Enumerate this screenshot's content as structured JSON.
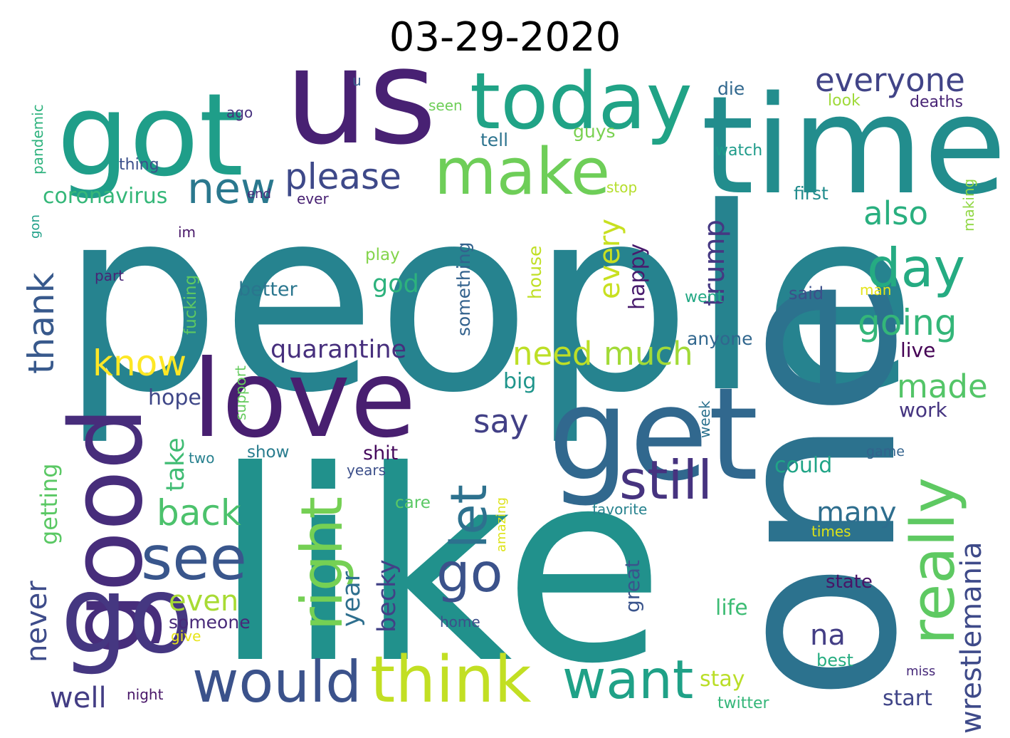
{
  "title": "03-29-2020",
  "words": [
    {
      "text": "people",
      "color": "#26838f"
    },
    {
      "text": "like",
      "color": "#21918c"
    },
    {
      "text": "one",
      "color": "#2c728e"
    },
    {
      "text": "time",
      "color": "#228d8d"
    },
    {
      "text": "us",
      "color": "#482173"
    },
    {
      "text": "got",
      "color": "#1f9e89"
    },
    {
      "text": "get",
      "color": "#31688e"
    },
    {
      "text": "love",
      "color": "#481f70"
    },
    {
      "text": "good",
      "color": "#472d7b"
    },
    {
      "text": "go",
      "color": "#453781"
    },
    {
      "text": "today",
      "color": "#20a386"
    },
    {
      "text": "make",
      "color": "#6ece58"
    },
    {
      "text": "really",
      "color": "#5ec962"
    },
    {
      "text": "think",
      "color": "#c2df23"
    },
    {
      "text": "would",
      "color": "#3b528b"
    },
    {
      "text": "want",
      "color": "#1fa187"
    },
    {
      "text": "see",
      "color": "#39568c"
    },
    {
      "text": "right",
      "color": "#75d054"
    },
    {
      "text": "still",
      "color": "#46337f"
    },
    {
      "text": "day",
      "color": "#25ab82"
    },
    {
      "text": "new",
      "color": "#2a788e"
    },
    {
      "text": "please",
      "color": "#3e4989"
    },
    {
      "text": "let",
      "color": "#2d718e"
    },
    {
      "text": "go",
      "color": "#3b528b"
    },
    {
      "text": "everyone",
      "color": "#414487"
    },
    {
      "text": "also",
      "color": "#29af7f"
    },
    {
      "text": "going",
      "color": "#34b679"
    },
    {
      "text": "thank",
      "color": "#38598c"
    },
    {
      "text": "know",
      "color": "#fde725"
    },
    {
      "text": "need",
      "color": "#bddf26"
    },
    {
      "text": "much",
      "color": "#a2da37"
    },
    {
      "text": "quarantine",
      "color": "#472f7d"
    },
    {
      "text": "back",
      "color": "#4cc26c"
    },
    {
      "text": "coronavirus",
      "color": "#35b779"
    },
    {
      "text": "trump",
      "color": "#453882"
    },
    {
      "text": "every",
      "color": "#c8e020"
    },
    {
      "text": "wrestlemania",
      "color": "#3e4a89"
    },
    {
      "text": "made",
      "color": "#54c568"
    },
    {
      "text": "never",
      "color": "#3e4c8a"
    },
    {
      "text": "na",
      "color": "#433e85"
    },
    {
      "text": "many",
      "color": "#2e6e8e"
    },
    {
      "text": "say",
      "color": "#424086"
    },
    {
      "text": "becky",
      "color": "#424186"
    },
    {
      "text": "year",
      "color": "#2e6f8e"
    },
    {
      "text": "getting",
      "color": "#5ac864"
    },
    {
      "text": "even",
      "color": "#a8db34"
    },
    {
      "text": "take",
      "color": "#3fbc73"
    },
    {
      "text": "god",
      "color": "#2db27d"
    },
    {
      "text": "well",
      "color": "#433d84"
    },
    {
      "text": "stay",
      "color": "#bade28"
    },
    {
      "text": "could",
      "color": "#20a486"
    },
    {
      "text": "life",
      "color": "#3dbc74"
    },
    {
      "text": "someone",
      "color": "#482979"
    },
    {
      "text": "happy",
      "color": "#481b6d"
    },
    {
      "text": "live",
      "color": "#440154"
    },
    {
      "text": "work",
      "color": "#453480"
    },
    {
      "text": "better",
      "color": "#2a768e"
    },
    {
      "text": "shit",
      "color": "#460a5d"
    },
    {
      "text": "hope",
      "color": "#3f4788"
    },
    {
      "text": "big",
      "color": "#1f958b"
    },
    {
      "text": "great",
      "color": "#3a548c"
    },
    {
      "text": "state",
      "color": "#481467"
    },
    {
      "text": "start",
      "color": "#404588"
    },
    {
      "text": "anyone",
      "color": "#31678e"
    },
    {
      "text": "tell",
      "color": "#2c738e"
    },
    {
      "text": "guys",
      "color": "#7ad151"
    },
    {
      "text": "die",
      "color": "#31688e"
    },
    {
      "text": "deaths",
      "color": "#482475"
    },
    {
      "text": "look",
      "color": "#9fda3a"
    },
    {
      "text": "watch",
      "color": "#1e9b8a"
    },
    {
      "text": "first",
      "color": "#228c8d"
    },
    {
      "text": "making",
      "color": "#90d743"
    },
    {
      "text": "man",
      "color": "#e5e419"
    },
    {
      "text": "went",
      "color": "#22a884"
    },
    {
      "text": "said",
      "color": "#3c4f8a"
    },
    {
      "text": "house",
      "color": "#c0df25"
    },
    {
      "text": "something",
      "color": "#33628d"
    },
    {
      "text": "play",
      "color": "#84d44b"
    },
    {
      "text": "fucking",
      "color": "#5ec962"
    },
    {
      "text": "support",
      "color": "#65cb5e"
    },
    {
      "text": "show",
      "color": "#287c8e"
    },
    {
      "text": "two",
      "color": "#27808e"
    },
    {
      "text": "years",
      "color": "#3c4f8a"
    },
    {
      "text": "care",
      "color": "#5ac864"
    },
    {
      "text": "amazing",
      "color": "#dde318"
    },
    {
      "text": "favorite",
      "color": "#26828e"
    },
    {
      "text": "home",
      "color": "#3c4f8a"
    },
    {
      "text": "give",
      "color": "#e7e419"
    },
    {
      "text": "night",
      "color": "#481668"
    },
    {
      "text": "twitter",
      "color": "#34b679"
    },
    {
      "text": "best",
      "color": "#27ad81"
    },
    {
      "text": "miss",
      "color": "#472a7a"
    },
    {
      "text": "times",
      "color": "#dde318"
    },
    {
      "text": "game",
      "color": "#33638d"
    },
    {
      "text": "week",
      "color": "#2c728e"
    },
    {
      "text": "ago",
      "color": "#46307e"
    },
    {
      "text": "thing",
      "color": "#3c508b"
    },
    {
      "text": "seen",
      "color": "#6ece58"
    },
    {
      "text": "u",
      "color": "#355f8d"
    },
    {
      "text": "pandemic",
      "color": "#2db27d"
    },
    {
      "text": "gon",
      "color": "#1fa088"
    },
    {
      "text": "end",
      "color": "#472c7a"
    },
    {
      "text": "ever",
      "color": "#482173"
    },
    {
      "text": "stop",
      "color": "#b5de2b"
    },
    {
      "text": "im",
      "color": "#481769"
    },
    {
      "text": "part",
      "color": "#482475"
    }
  ]
}
